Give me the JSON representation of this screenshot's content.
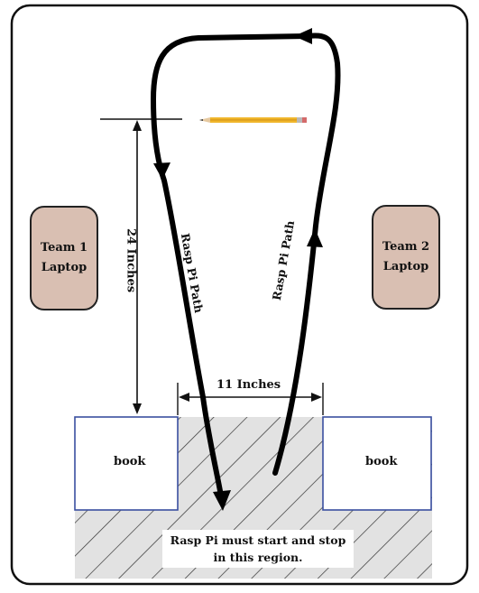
{
  "team1_laptop": {
    "line1": "Team 1",
    "line2": "Laptop"
  },
  "team2_laptop": {
    "line1": "Team 2",
    "line2": "Laptop"
  },
  "left_book": "book",
  "right_book": "book",
  "height_dimension": "24 Inches",
  "gap_dimension": "11 Inches",
  "path_label_left": "Rasp Pi Path",
  "path_label_right": "Rasp Pi Path",
  "notice": {
    "line1": "Rasp Pi must start and stop",
    "line2": "in this region."
  }
}
